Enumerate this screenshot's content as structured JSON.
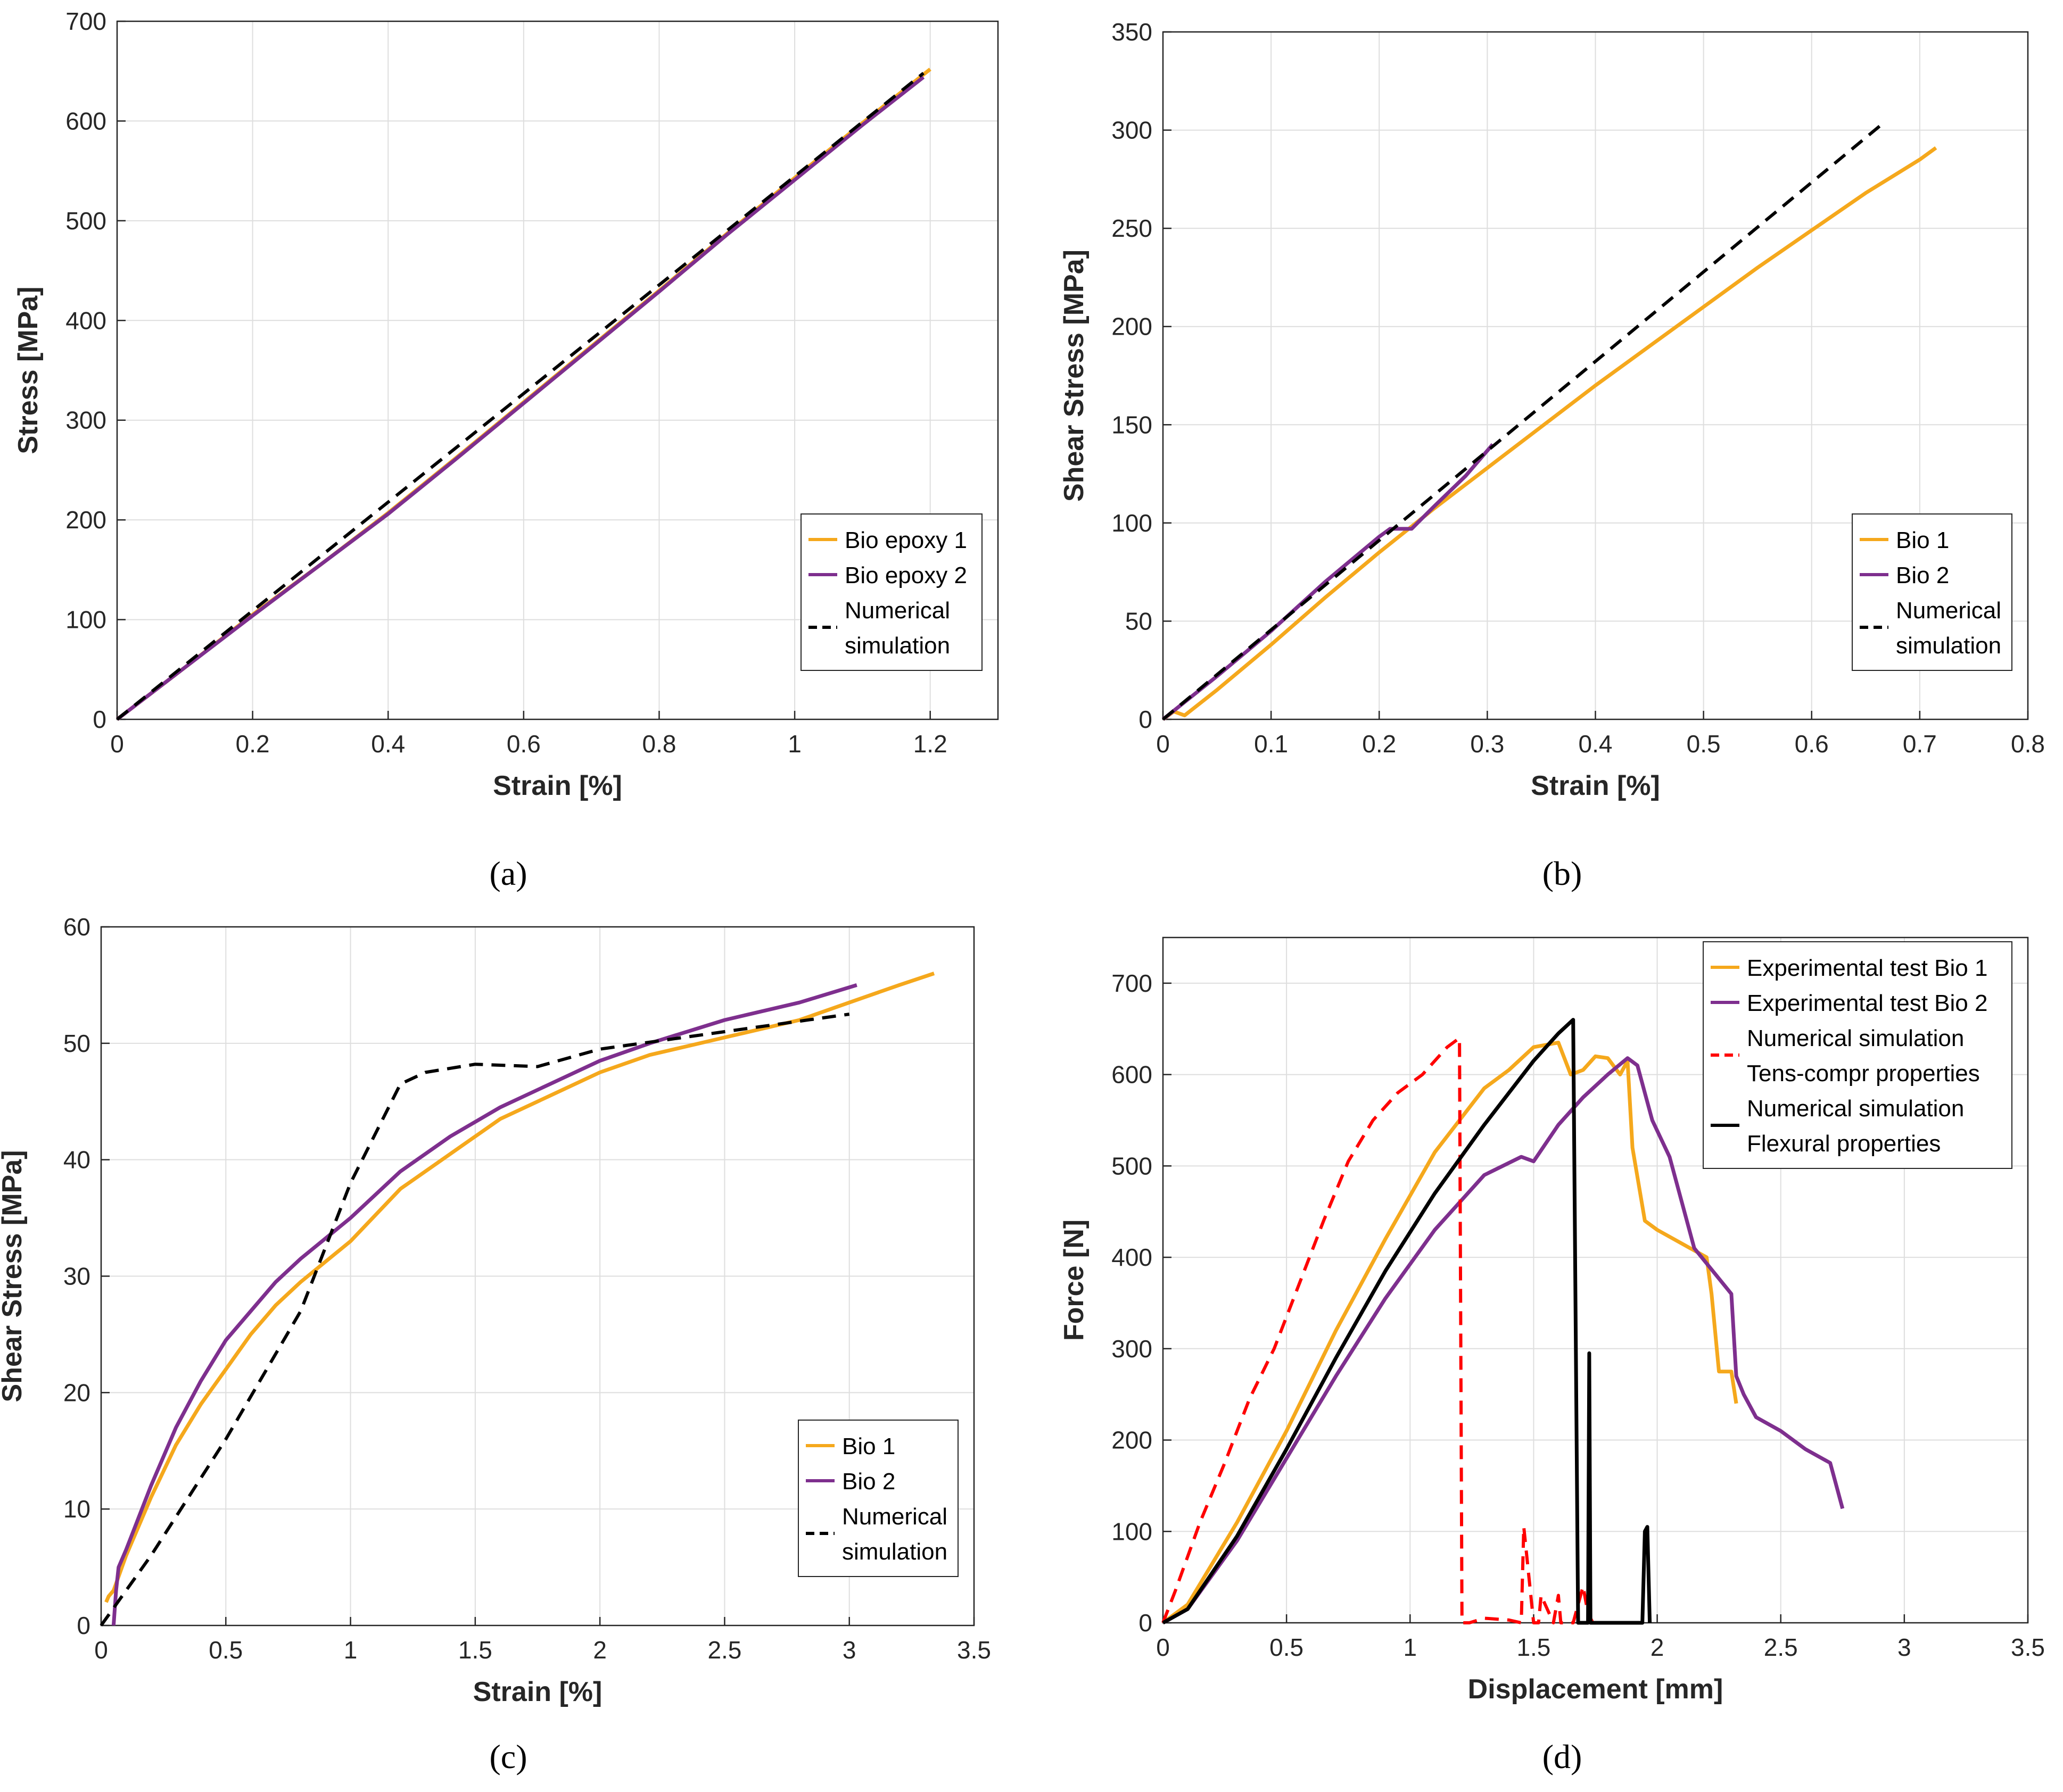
{
  "colors": {
    "bio1": "#F5A81C",
    "bio2": "#7E2F8E",
    "sim": "#000000",
    "sim_red": "#FF0000",
    "grid": "#DEDEDE",
    "axis": "#262626"
  },
  "panels": {
    "a": {
      "label": "(a)"
    },
    "b": {
      "label": "(b)"
    },
    "c": {
      "label": "(c)"
    },
    "d": {
      "label": "(d)"
    }
  },
  "chart_data": [
    {
      "id": "a",
      "type": "line",
      "title": "",
      "xlabel": "Strain [%]",
      "ylabel": "Stress [MPa]",
      "xlim": [
        0,
        1.3
      ],
      "ylim": [
        0,
        700
      ],
      "xticks": [
        0,
        0.2,
        0.4,
        0.6,
        0.8,
        1,
        1.2
      ],
      "xtick_labels": [
        "0",
        "0.2",
        "0.4",
        "0.6",
        "0.8",
        "1",
        "1.2"
      ],
      "yticks": [
        0,
        100,
        200,
        300,
        400,
        500,
        600,
        700
      ],
      "ytick_labels": [
        "0",
        "100",
        "200",
        "300",
        "400",
        "500",
        "600",
        "700"
      ],
      "grid": true,
      "legend_position": "bottom-right",
      "series": [
        {
          "name": "Bio epoxy 1",
          "legend": [
            "Bio epoxy 1"
          ],
          "color": "bio1",
          "style": "solid",
          "x": [
            0,
            0.1,
            0.2,
            0.3,
            0.4,
            0.5,
            0.6,
            0.7,
            0.8,
            0.9,
            1.0,
            1.1,
            1.2
          ],
          "y": [
            0,
            52,
            105,
            155,
            207,
            262,
            318,
            374,
            430,
            487,
            543,
            598,
            652
          ]
        },
        {
          "name": "Bio epoxy 2",
          "legend": [
            "Bio epoxy 2"
          ],
          "color": "bio2",
          "style": "solid",
          "x": [
            0,
            0.1,
            0.2,
            0.3,
            0.4,
            0.5,
            0.6,
            0.7,
            0.8,
            0.9,
            1.0,
            1.1,
            1.19
          ],
          "y": [
            0,
            52,
            104,
            155,
            206,
            261,
            317,
            373,
            429,
            486,
            541,
            596,
            644
          ]
        },
        {
          "name": "Numerical simulation",
          "legend": [
            "Numerical",
            "simulation"
          ],
          "color": "sim",
          "style": "dashed",
          "x": [
            0,
            1.19
          ],
          "y": [
            0,
            648
          ]
        }
      ]
    },
    {
      "id": "b",
      "type": "line",
      "title": "",
      "xlabel": "Strain [%]",
      "ylabel": "Shear Stress [MPa]",
      "xlim": [
        0,
        0.8
      ],
      "ylim": [
        0,
        350
      ],
      "xticks": [
        0,
        0.1,
        0.2,
        0.3,
        0.4,
        0.5,
        0.6,
        0.7,
        0.8
      ],
      "xtick_labels": [
        "0",
        "0.1",
        "0.2",
        "0.3",
        "0.4",
        "0.5",
        "0.6",
        "0.7",
        "0.8"
      ],
      "yticks": [
        0,
        50,
        100,
        150,
        200,
        250,
        300,
        350
      ],
      "ytick_labels": [
        "0",
        "50",
        "100",
        "150",
        "200",
        "250",
        "300",
        "350"
      ],
      "grid": true,
      "legend_position": "bottom-right",
      "series": [
        {
          "name": "Bio 1",
          "legend": [
            "Bio 1"
          ],
          "color": "bio1",
          "style": "solid",
          "x": [
            0,
            0.01,
            0.02,
            0.05,
            0.1,
            0.15,
            0.2,
            0.25,
            0.3,
            0.35,
            0.4,
            0.45,
            0.5,
            0.55,
            0.6,
            0.65,
            0.7,
            0.715
          ],
          "y": [
            0,
            4,
            2,
            15,
            38,
            62,
            85,
            107,
            128,
            149,
            170,
            190,
            210,
            230,
            249,
            268,
            285,
            291
          ]
        },
        {
          "name": "Bio 2",
          "legend": [
            "Bio 2"
          ],
          "color": "bio2",
          "style": "solid",
          "x": [
            0,
            0.05,
            0.1,
            0.15,
            0.2,
            0.21,
            0.23,
            0.25,
            0.28,
            0.305
          ],
          "y": [
            0,
            22,
            45,
            70,
            93,
            97,
            97,
            108,
            124,
            140
          ]
        },
        {
          "name": "Numerical simulation",
          "legend": [
            "Numerical",
            "simulation"
          ],
          "color": "sim",
          "style": "dashed",
          "x": [
            0,
            0.665
          ],
          "y": [
            0,
            303
          ]
        }
      ]
    },
    {
      "id": "c",
      "type": "line",
      "title": "",
      "xlabel": "Strain [%]",
      "ylabel": "Shear Stress [MPa]",
      "xlim": [
        0,
        3.5
      ],
      "ylim": [
        0,
        60
      ],
      "xticks": [
        0,
        0.5,
        1,
        1.5,
        2,
        2.5,
        3,
        3.5
      ],
      "xtick_labels": [
        "0",
        "0.5",
        "1",
        "1.5",
        "2",
        "2.5",
        "3",
        "3.5"
      ],
      "yticks": [
        0,
        10,
        20,
        30,
        40,
        50,
        60
      ],
      "ytick_labels": [
        "0",
        "10",
        "20",
        "30",
        "40",
        "50",
        "60"
      ],
      "grid": true,
      "legend_position": "bottom-right",
      "series": [
        {
          "name": "Bio 1",
          "legend": [
            "Bio 1"
          ],
          "color": "bio1",
          "style": "solid",
          "x": [
            0.02,
            0.03,
            0.05,
            0.1,
            0.2,
            0.3,
            0.4,
            0.5,
            0.6,
            0.7,
            0.8,
            1.0,
            1.2,
            1.4,
            1.6,
            1.8,
            2.0,
            2.2,
            2.5,
            2.8,
            3.0,
            3.2,
            3.34
          ],
          "y": [
            2,
            2.5,
            3,
            6,
            11,
            15.5,
            19,
            22,
            25,
            27.5,
            29.5,
            33,
            37.5,
            40.5,
            43.5,
            45.5,
            47.5,
            49,
            50.5,
            52,
            53.5,
            55,
            56
          ]
        },
        {
          "name": "Bio 2",
          "legend": [
            "Bio 2"
          ],
          "color": "bio2",
          "style": "solid",
          "x": [
            0.05,
            0.06,
            0.07,
            0.1,
            0.2,
            0.3,
            0.4,
            0.5,
            0.6,
            0.7,
            0.8,
            1.0,
            1.2,
            1.4,
            1.6,
            1.8,
            2.0,
            2.2,
            2.5,
            2.8,
            3.03
          ],
          "y": [
            0,
            3,
            5,
            6.5,
            12,
            17,
            21,
            24.5,
            27,
            29.5,
            31.5,
            35,
            39,
            42,
            44.5,
            46.5,
            48.5,
            50,
            52,
            53.5,
            55
          ]
        },
        {
          "name": "Numerical simulation",
          "legend": [
            "Numerical",
            "simulation"
          ],
          "color": "sim",
          "style": "dashed",
          "x": [
            0,
            0.2,
            0.5,
            0.8,
            1.0,
            1.2,
            1.3,
            1.5,
            1.75,
            2.0,
            2.5,
            3.0
          ],
          "y": [
            0,
            6,
            16,
            27,
            38,
            46.5,
            47.5,
            48.2,
            48,
            49.5,
            51,
            52.5
          ]
        }
      ]
    },
    {
      "id": "d",
      "type": "line",
      "title": "",
      "xlabel": "Displacement [mm]",
      "ylabel": "Force [N]",
      "xlim": [
        0,
        3.5
      ],
      "ylim": [
        0,
        750
      ],
      "xticks": [
        0,
        0.5,
        1,
        1.5,
        2,
        2.5,
        3,
        3.5
      ],
      "xtick_labels": [
        "0",
        "0.5",
        "1",
        "1.5",
        "2",
        "2.5",
        "3",
        "3.5"
      ],
      "yticks": [
        0,
        100,
        200,
        300,
        400,
        500,
        600,
        700
      ],
      "ytick_labels": [
        "0",
        "100",
        "200",
        "300",
        "400",
        "500",
        "600",
        "700"
      ],
      "grid": true,
      "legend_position": "top-right",
      "series": [
        {
          "name": "Experimental test Bio 1",
          "legend": [
            "Experimental test Bio 1"
          ],
          "color": "bio1",
          "style": "solid",
          "x": [
            0,
            0.1,
            0.3,
            0.5,
            0.7,
            0.9,
            1.1,
            1.3,
            1.4,
            1.5,
            1.6,
            1.65,
            1.7,
            1.75,
            1.8,
            1.85,
            1.88,
            1.9,
            1.95,
            2.0,
            2.1,
            2.2,
            2.22,
            2.25,
            2.3,
            2.32
          ],
          "y": [
            0,
            20,
            110,
            210,
            320,
            420,
            515,
            585,
            605,
            630,
            635,
            600,
            605,
            620,
            618,
            600,
            615,
            520,
            440,
            430,
            415,
            400,
            360,
            275,
            275,
            240
          ]
        },
        {
          "name": "Experimental test Bio 2",
          "legend": [
            "Experimental test Bio 2"
          ],
          "color": "bio2",
          "style": "solid",
          "x": [
            0,
            0.1,
            0.3,
            0.5,
            0.7,
            0.9,
            1.1,
            1.3,
            1.45,
            1.5,
            1.6,
            1.7,
            1.8,
            1.88,
            1.92,
            1.98,
            2.05,
            2.1,
            2.15,
            2.3,
            2.32,
            2.35,
            2.4,
            2.5,
            2.6,
            2.7,
            2.72,
            2.75
          ],
          "y": [
            0,
            15,
            90,
            180,
            270,
            355,
            430,
            490,
            510,
            505,
            545,
            575,
            600,
            618,
            610,
            550,
            510,
            460,
            410,
            360,
            270,
            250,
            225,
            210,
            190,
            175,
            155,
            125
          ]
        },
        {
          "name": "Numerical simulation Tens-compr properties",
          "legend": [
            "Numerical simulation",
            "Tens-compr properties"
          ],
          "color": "sim_red",
          "style": "dashed",
          "x": [
            0,
            0.05,
            0.15,
            0.25,
            0.35,
            0.45,
            0.55,
            0.65,
            0.75,
            0.85,
            0.95,
            1.05,
            1.15,
            1.2,
            1.21,
            1.22,
            1.24,
            1.3,
            1.4,
            1.45,
            1.46,
            1.5,
            1.52,
            1.53,
            1.58,
            1.6,
            1.61,
            1.66,
            1.7,
            1.72,
            1.74,
            1.76
          ],
          "y": [
            0,
            35,
            110,
            175,
            245,
            300,
            370,
            440,
            505,
            550,
            580,
            600,
            630,
            640,
            0,
            0,
            0,
            5,
            3,
            0,
            105,
            0,
            0,
            30,
            0,
            30,
            0,
            0,
            40,
            10,
            0,
            0
          ]
        },
        {
          "name": "Numerical simulation Flexural properties",
          "legend": [
            "Numerical simulation",
            "Flexural properties"
          ],
          "color": "sim",
          "style": "solid",
          "x": [
            0,
            0.1,
            0.3,
            0.5,
            0.7,
            0.9,
            1.1,
            1.3,
            1.5,
            1.6,
            1.66,
            1.68,
            1.7,
            1.72,
            1.725,
            1.73,
            1.74,
            1.9,
            1.94,
            1.95,
            1.96,
            1.97
          ],
          "y": [
            0,
            15,
            95,
            190,
            290,
            385,
            470,
            545,
            615,
            645,
            660,
            0,
            0,
            0,
            295,
            0,
            0,
            0,
            0,
            100,
            105,
            0
          ]
        }
      ]
    }
  ]
}
